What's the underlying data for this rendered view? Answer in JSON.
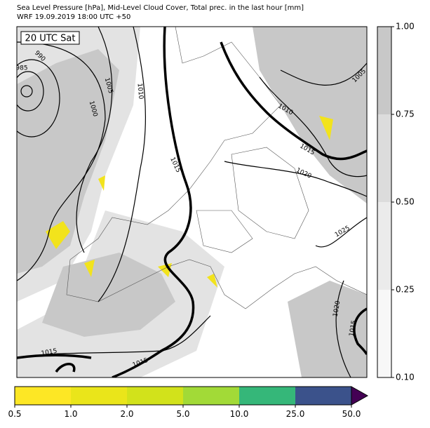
{
  "header": {
    "title": "Sea Level Pressure [hPa], Mid-Level Cloud Cover, Total prec. in the last hour [mm]",
    "subtitle": "WRF 19.09.2019 18:00 UTC +50"
  },
  "map": {
    "time_label": "20 UTC Sat",
    "contour_labels": [
      985,
      990,
      1005,
      1010,
      1000,
      1015,
      1015,
      1015,
      1005,
      1010,
      1015,
      1020,
      1025,
      1020,
      1015
    ]
  },
  "cloud_colorbar": {
    "ticks": [
      {
        "value": 0.1,
        "label": "0.10"
      },
      {
        "value": 0.25,
        "label": "0.25"
      },
      {
        "value": 0.5,
        "label": "0.50"
      },
      {
        "value": 0.75,
        "label": "0.75"
      },
      {
        "value": 1.0,
        "label": "1.00"
      }
    ],
    "colors": [
      "#f7f7f7",
      "#ebebeb",
      "#dcdcdc",
      "#c8c8c8"
    ]
  },
  "precip_colorbar": {
    "ticks": [
      {
        "value": 0.5,
        "label": "0.5"
      },
      {
        "value": 1.0,
        "label": "1.0"
      },
      {
        "value": 2.0,
        "label": "2.0"
      },
      {
        "value": 5.0,
        "label": "5.0"
      },
      {
        "value": 10.0,
        "label": "10.0"
      },
      {
        "value": 25.0,
        "label": "25.0"
      },
      {
        "value": 50.0,
        "label": "50.0"
      }
    ],
    "colors": [
      "#fde725",
      "#eae51a",
      "#d2e21b",
      "#a2da37",
      "#35b779",
      "#3b528b"
    ],
    "extend_color": "#440154"
  }
}
